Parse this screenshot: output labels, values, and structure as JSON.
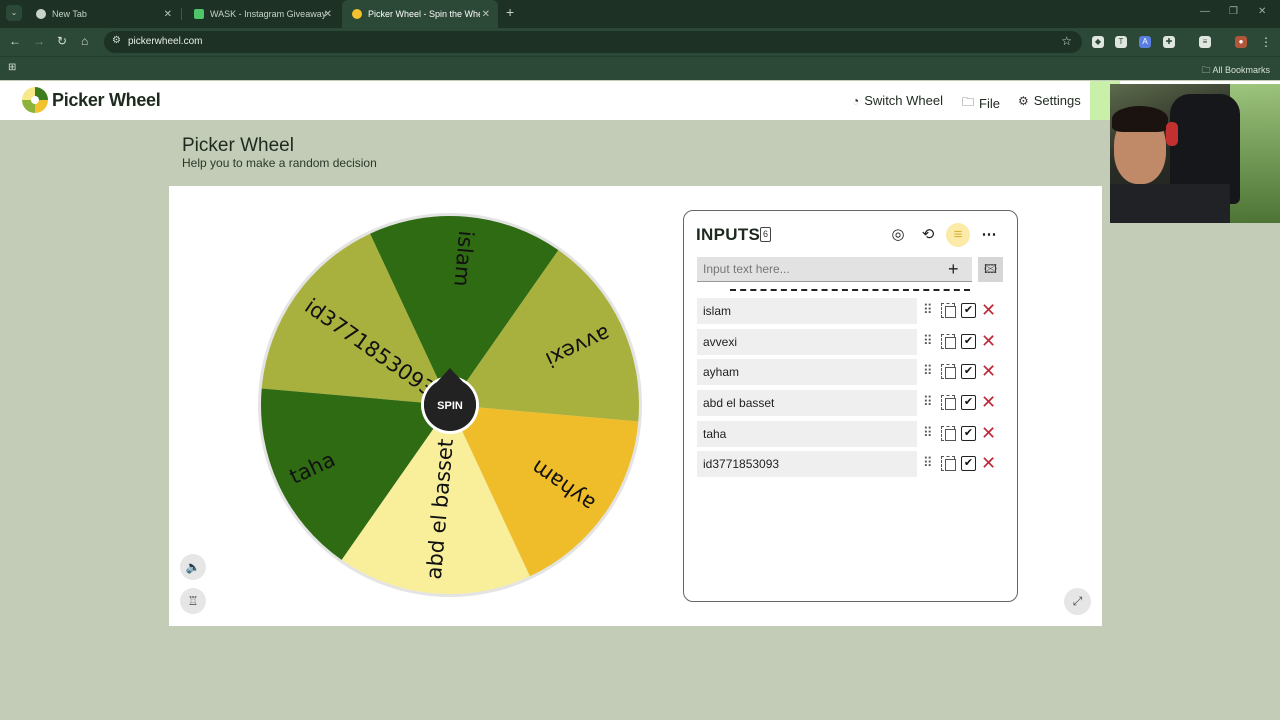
{
  "browser": {
    "tabs": [
      {
        "title": "New Tab"
      },
      {
        "title": "WASK - Instagram Giveaway"
      },
      {
        "title": "Picker Wheel - Spin the Wheel"
      }
    ],
    "url": "pickerwheel.com",
    "all_bookmarks": "All Bookmarks"
  },
  "header": {
    "logo": "Picker Wheel",
    "nav": [
      {
        "label": "Switch Wheel",
        "icon": "pointer-icon"
      },
      {
        "label": "File",
        "icon": "folder-icon"
      },
      {
        "label": "Settings",
        "icon": "gear-icon"
      }
    ]
  },
  "page": {
    "title": "Picker Wheel",
    "subtitle": "Help you to make a random decision"
  },
  "wheel": {
    "spin_label": "SPIN",
    "segments": [
      {
        "label": "id3771853093",
        "color": "#a9b13e"
      },
      {
        "label": "islam",
        "color": "#2f6b12"
      },
      {
        "label": "avvexi",
        "color": "#a9b13e"
      },
      {
        "label": "ayham",
        "color": "#f0bd2a"
      },
      {
        "label": "abd el basset",
        "color": "#f9ef9a"
      },
      {
        "label": "taha",
        "color": "#2f6b12"
      }
    ]
  },
  "inputs": {
    "title": "INPUTS",
    "count": "6",
    "placeholder": "Input text here...",
    "entries": [
      {
        "name": "islam"
      },
      {
        "name": "avvexi"
      },
      {
        "name": "ayham"
      },
      {
        "name": "abd el basset"
      },
      {
        "name": "taha"
      },
      {
        "name": "id3771853093"
      }
    ]
  },
  "colors": {
    "brand_green": "#2f6b12",
    "olive": "#a9b13e",
    "yellow": "#f0bd2a",
    "light_yellow": "#f9ef9a",
    "delete_red": "#c0283a"
  }
}
